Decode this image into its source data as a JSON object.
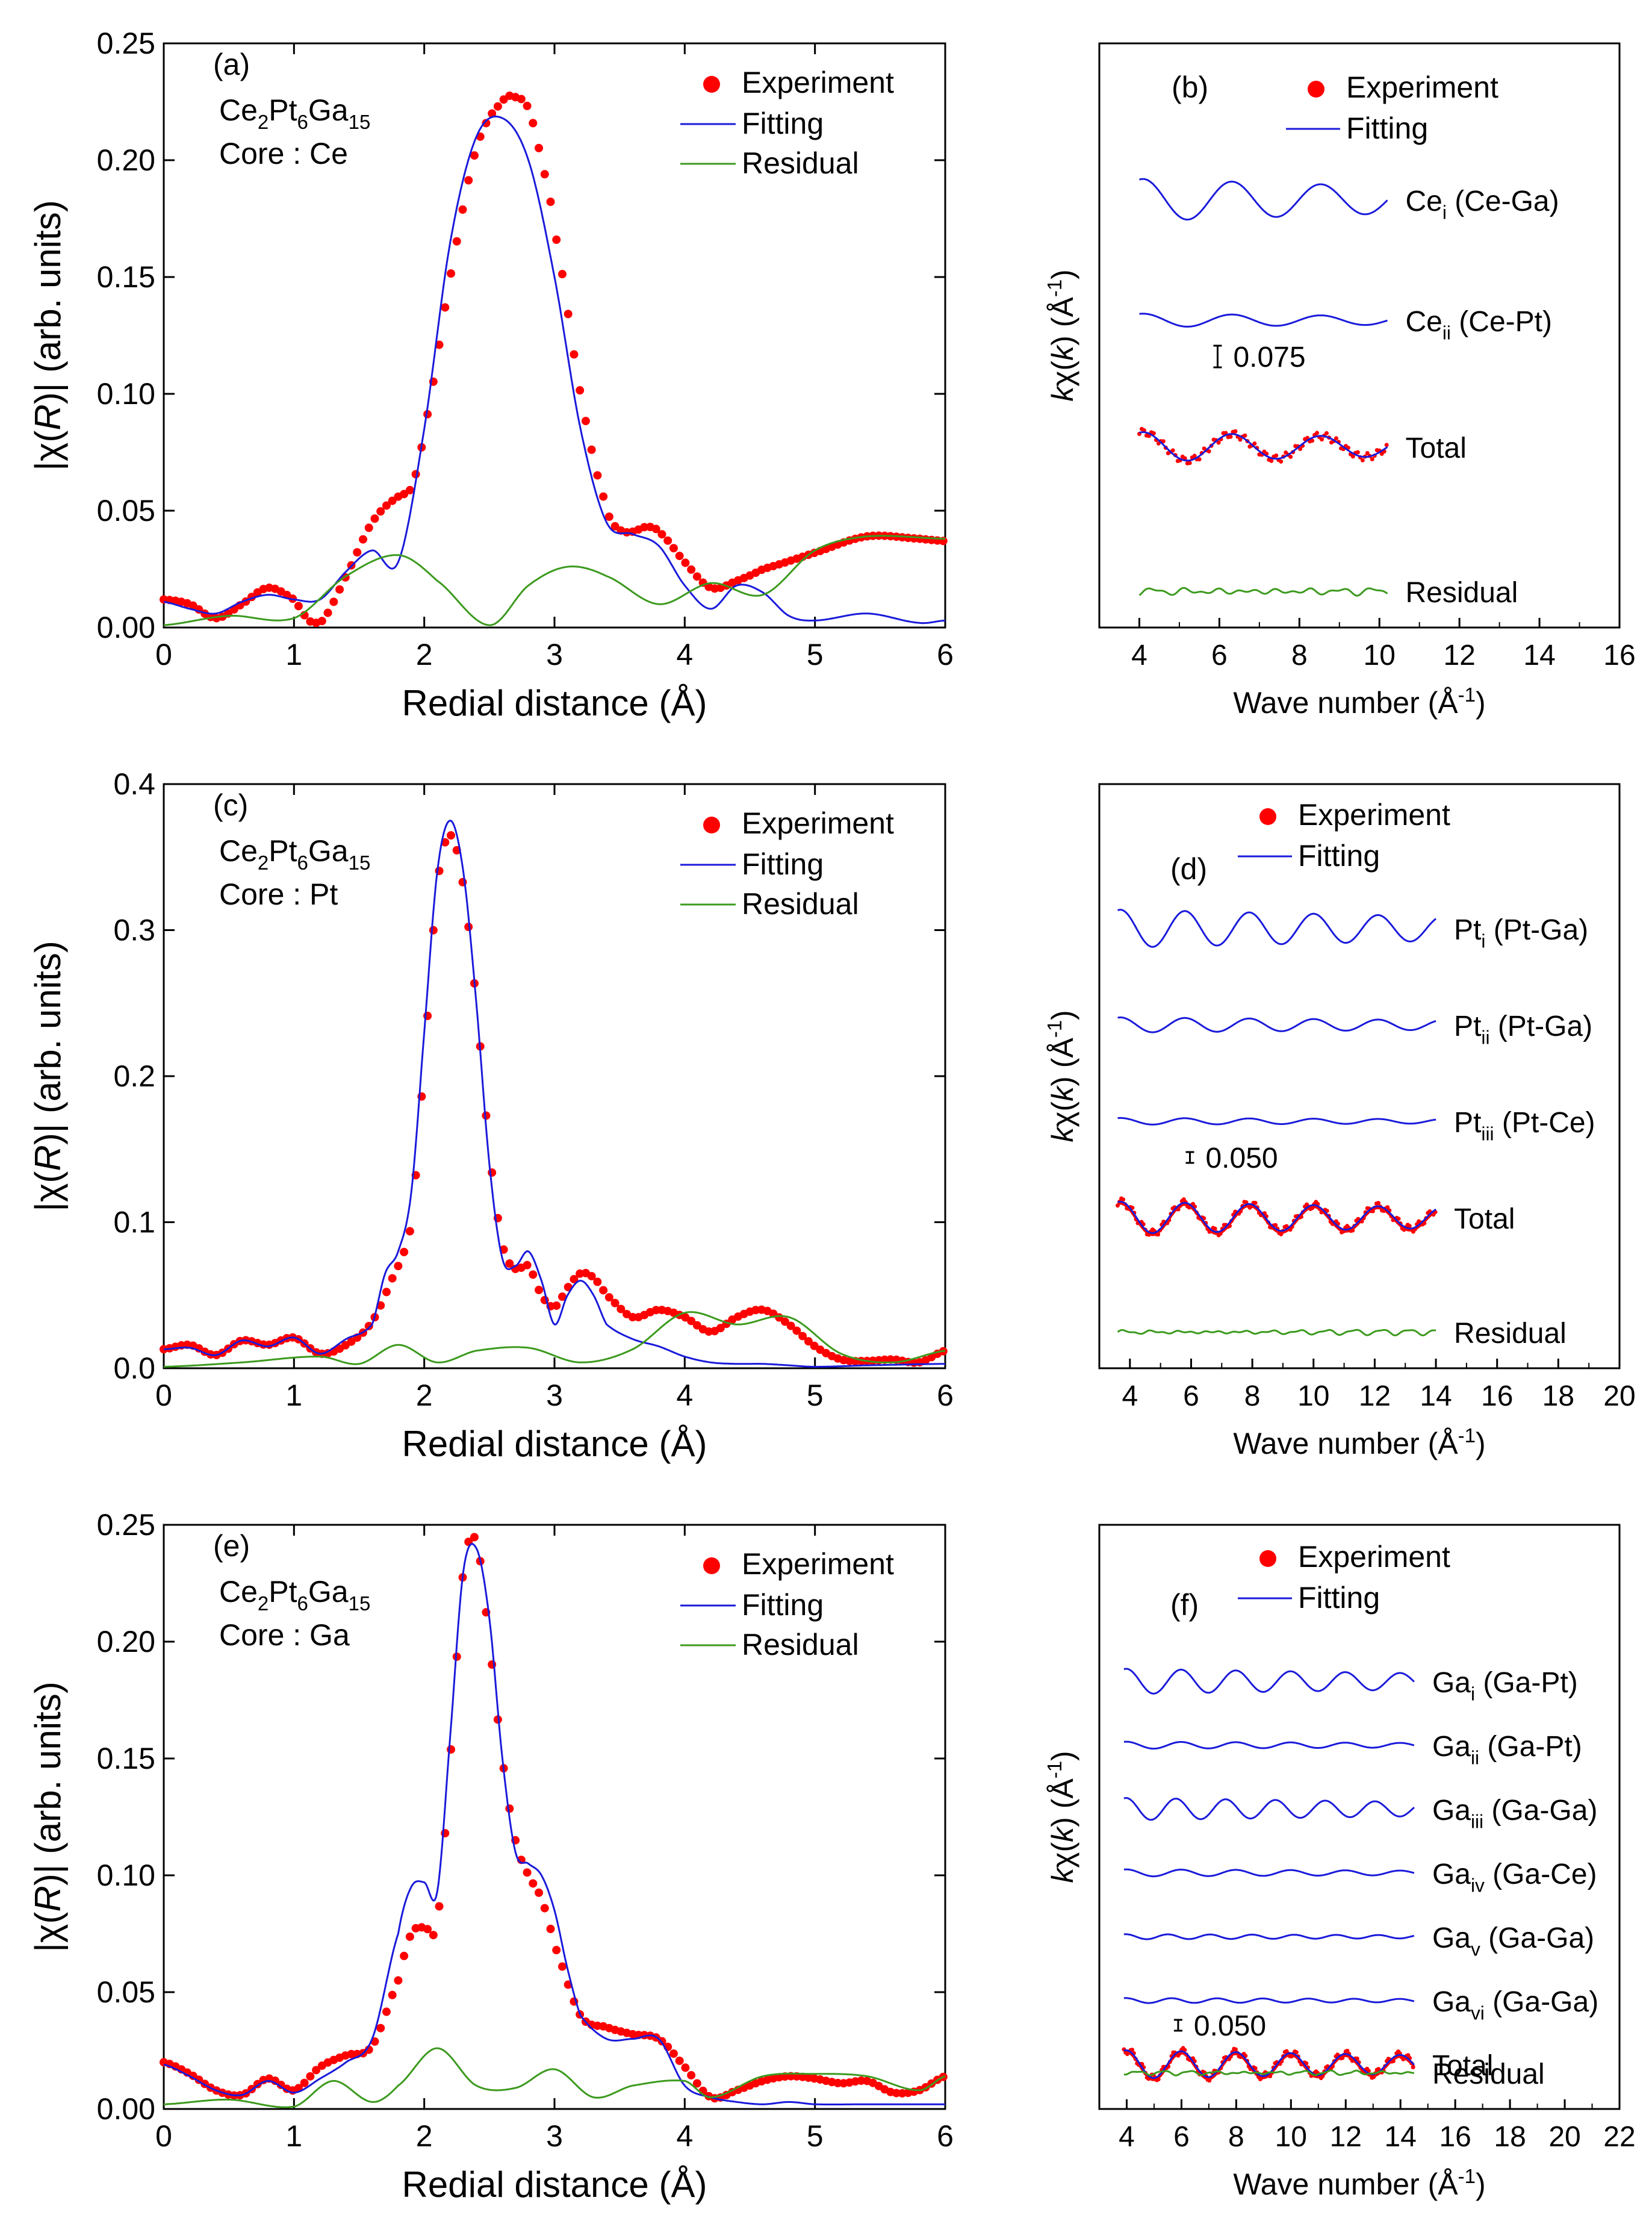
{
  "colors": {
    "experiment": "#ff0000",
    "fitting": "#1a1adb",
    "residual": "#3c9a1e",
    "axis": "#000000"
  },
  "chart_data": [
    {
      "id": "a",
      "type": "line",
      "label": "(a)",
      "title_lines": [
        [
          "Ce",
          "2",
          "Pt",
          "6",
          "Ga",
          "15"
        ],
        "Core : Ce"
      ],
      "xlabel": "Redial distance (Å)",
      "ylabel": "|χ(R)| (arb. units)",
      "xlim": [
        0,
        6
      ],
      "ylim": [
        0,
        0.25
      ],
      "xticks": [
        "0",
        "1",
        "2",
        "3",
        "4",
        "5",
        "6"
      ],
      "yticks": [
        "0.00",
        "0.05",
        "0.10",
        "0.15",
        "0.20",
        "0.25"
      ],
      "legend": [
        "Experiment",
        "Fitting",
        "Residual"
      ],
      "series": [
        {
          "name": "Experiment",
          "kind": "points",
          "x": [
            0,
            0.2,
            0.4,
            0.6,
            0.8,
            1.0,
            1.1,
            1.2,
            1.4,
            1.6,
            1.8,
            1.9,
            2.0,
            2.2,
            2.4,
            2.6,
            2.7,
            2.8,
            2.9,
            3.0,
            3.2,
            3.4,
            3.5,
            3.6,
            3.7,
            3.8,
            4.0,
            4.2,
            4.4,
            4.6,
            5.0,
            5.4,
            5.8,
            6.0
          ],
          "y": [
            0.012,
            0.01,
            0.004,
            0.01,
            0.017,
            0.012,
            0.004,
            0.002,
            0.022,
            0.045,
            0.056,
            0.06,
            0.085,
            0.15,
            0.205,
            0.225,
            0.227,
            0.222,
            0.2,
            0.17,
            0.1,
            0.052,
            0.042,
            0.041,
            0.043,
            0.041,
            0.028,
            0.017,
            0.02,
            0.025,
            0.032,
            0.039,
            0.038,
            0.037
          ]
        },
        {
          "name": "Fitting",
          "kind": "line",
          "x": [
            0,
            0.2,
            0.4,
            0.6,
            0.8,
            1.0,
            1.2,
            1.4,
            1.6,
            1.8,
            2.0,
            2.2,
            2.4,
            2.6,
            2.8,
            3.0,
            3.2,
            3.4,
            3.6,
            3.8,
            4.0,
            4.2,
            4.4,
            4.6,
            4.8,
            5.0,
            5.4,
            5.8,
            6.0
          ],
          "y": [
            0.011,
            0.008,
            0.006,
            0.011,
            0.014,
            0.012,
            0.012,
            0.024,
            0.033,
            0.028,
            0.085,
            0.165,
            0.21,
            0.218,
            0.2,
            0.15,
            0.085,
            0.045,
            0.04,
            0.035,
            0.018,
            0.008,
            0.018,
            0.015,
            0.005,
            0.003,
            0.006,
            0.002,
            0.003
          ]
        },
        {
          "name": "Residual",
          "kind": "line",
          "x": [
            0,
            0.5,
            1.0,
            1.4,
            1.8,
            2.1,
            2.5,
            2.8,
            3.1,
            3.4,
            3.8,
            4.2,
            4.6,
            5.0,
            5.4,
            6.0
          ],
          "y": [
            0.001,
            0.005,
            0.004,
            0.022,
            0.031,
            0.02,
            0.001,
            0.018,
            0.026,
            0.022,
            0.01,
            0.019,
            0.014,
            0.033,
            0.039,
            0.038
          ]
        }
      ]
    },
    {
      "id": "b",
      "type": "line",
      "label": "(b)",
      "xlabel": "Wave number (Å⁻¹)",
      "ylabel": "kχ(k) (Å⁻¹)",
      "xlim": [
        3,
        16
      ],
      "xticks": [
        "4",
        "6",
        "8",
        "10",
        "12",
        "14",
        "16"
      ],
      "legend": [
        "Experiment",
        "Fitting"
      ],
      "scale_bar": "0.075",
      "series": [
        {
          "name": "Ce",
          "sub": "i",
          "suffix": " (Ce-Ga)",
          "x_range": [
            4,
            10.2
          ],
          "amplitude": 0.5,
          "frequency": 0.9
        },
        {
          "name": "Ce",
          "sub": "ii",
          "suffix": " (Ce-Pt)",
          "x_range": [
            4,
            10.2
          ],
          "amplitude": 0.16,
          "frequency": 0.9
        },
        {
          "name": "Total",
          "x_range": [
            4,
            10.2
          ],
          "amplitude": 0.35,
          "frequency": 0.9,
          "with_points": true
        },
        {
          "name": "Residual",
          "x_range": [
            4,
            10.2
          ],
          "amplitude": 0.12,
          "frequency": 2.5,
          "noise": true
        }
      ]
    },
    {
      "id": "c",
      "type": "line",
      "label": "(c)",
      "title_lines": [
        [
          "Ce",
          "2",
          "Pt",
          "6",
          "Ga",
          "15"
        ],
        "Core : Pt"
      ],
      "xlabel": "Redial distance (Å)",
      "ylabel": "|χ(R)| (arb. units)",
      "xlim": [
        0,
        6
      ],
      "ylim": [
        0,
        0.4
      ],
      "xticks": [
        "0",
        "1",
        "2",
        "3",
        "4",
        "5",
        "6"
      ],
      "yticks": [
        "0.0",
        "0.1",
        "0.2",
        "0.3",
        "0.4"
      ],
      "legend": [
        "Experiment",
        "Fitting",
        "Residual"
      ],
      "series": [
        {
          "name": "Experiment",
          "kind": "points",
          "x": [
            0,
            0.2,
            0.4,
            0.6,
            0.8,
            1.0,
            1.2,
            1.4,
            1.6,
            1.8,
            1.9,
            2.0,
            2.1,
            2.2,
            2.3,
            2.4,
            2.5,
            2.6,
            2.7,
            2.8,
            2.9,
            3.0,
            3.1,
            3.2,
            3.3,
            3.4,
            3.6,
            3.8,
            4.0,
            4.2,
            4.4,
            4.6,
            4.8,
            5.0,
            5.2,
            5.4,
            5.6,
            5.8,
            6.0
          ],
          "y": [
            0.013,
            0.016,
            0.009,
            0.019,
            0.016,
            0.021,
            0.01,
            0.016,
            0.032,
            0.07,
            0.1,
            0.21,
            0.33,
            0.365,
            0.33,
            0.25,
            0.15,
            0.085,
            0.068,
            0.07,
            0.05,
            0.042,
            0.055,
            0.065,
            0.062,
            0.05,
            0.035,
            0.04,
            0.035,
            0.025,
            0.035,
            0.04,
            0.03,
            0.015,
            0.006,
            0.005,
            0.006,
            0.004,
            0.012
          ]
        },
        {
          "name": "Fitting",
          "kind": "line",
          "x": [
            0,
            0.2,
            0.4,
            0.6,
            0.8,
            1.0,
            1.2,
            1.4,
            1.6,
            1.7,
            1.8,
            1.9,
            2.0,
            2.1,
            2.2,
            2.3,
            2.4,
            2.5,
            2.6,
            2.7,
            2.8,
            2.9,
            3.0,
            3.1,
            3.2,
            3.3,
            3.4,
            3.6,
            3.8,
            4.0,
            4.2,
            4.4,
            4.6,
            4.8,
            5.0,
            5.4,
            6.0
          ],
          "y": [
            0.013,
            0.014,
            0.009,
            0.019,
            0.015,
            0.021,
            0.01,
            0.02,
            0.03,
            0.065,
            0.08,
            0.12,
            0.23,
            0.34,
            0.375,
            0.34,
            0.25,
            0.14,
            0.075,
            0.07,
            0.08,
            0.06,
            0.03,
            0.05,
            0.06,
            0.05,
            0.03,
            0.02,
            0.015,
            0.008,
            0.004,
            0.003,
            0.003,
            0.002,
            0.001,
            0.002,
            0.003
          ]
        },
        {
          "name": "Residual",
          "kind": "line",
          "x": [
            0,
            0.6,
            1.2,
            1.5,
            1.8,
            2.1,
            2.4,
            2.8,
            3.2,
            3.6,
            4.0,
            4.4,
            4.8,
            5.2,
            5.6,
            6.0
          ],
          "y": [
            0.001,
            0.004,
            0.008,
            0.003,
            0.016,
            0.004,
            0.012,
            0.014,
            0.004,
            0.013,
            0.038,
            0.03,
            0.035,
            0.01,
            0.004,
            0.012
          ]
        }
      ]
    },
    {
      "id": "d",
      "type": "line",
      "label": "(d)",
      "xlabel": "Wave number (Å⁻¹)",
      "ylabel": "kχ(k) (Å⁻¹)",
      "xlim": [
        3,
        20
      ],
      "xticks": [
        "4",
        "6",
        "8",
        "10",
        "12",
        "14",
        "16",
        "18",
        "20"
      ],
      "legend": [
        "Experiment",
        "Fitting"
      ],
      "scale_bar": "0.050",
      "series": [
        {
          "name": "Pt",
          "sub": "i",
          "suffix": " (Pt-Ga)",
          "x_range": [
            3.6,
            14
          ],
          "amplitude": 0.45,
          "frequency": 0.95
        },
        {
          "name": "Pt",
          "sub": "ii",
          "suffix": " (Pt-Ga)",
          "x_range": [
            3.6,
            14
          ],
          "amplitude": 0.18,
          "frequency": 0.95
        },
        {
          "name": "Pt",
          "sub": "iii",
          "suffix": " (Pt-Ce)",
          "x_range": [
            3.6,
            14
          ],
          "amplitude": 0.08,
          "frequency": 0.95
        },
        {
          "name": "Total",
          "x_range": [
            3.6,
            14
          ],
          "amplitude": 0.38,
          "frequency": 0.95,
          "with_points": true
        },
        {
          "name": "Residual",
          "x_range": [
            3.6,
            14
          ],
          "amplitude": 0.06,
          "frequency": 2.2,
          "noise": true
        }
      ]
    },
    {
      "id": "e",
      "type": "line",
      "label": "(e)",
      "title_lines": [
        [
          "Ce",
          "2",
          "Pt",
          "6",
          "Ga",
          "15"
        ],
        "Core : Ga"
      ],
      "xlabel": "Redial distance (Å)",
      "ylabel": "|χ(R)| (arb. units)",
      "xlim": [
        0,
        6
      ],
      "ylim": [
        0,
        0.25
      ],
      "xticks": [
        "0",
        "1",
        "2",
        "3",
        "4",
        "5",
        "6"
      ],
      "yticks": [
        "0.00",
        "0.05",
        "0.10",
        "0.15",
        "0.20",
        "0.25"
      ],
      "legend": [
        "Experiment",
        "Fitting",
        "Residual"
      ],
      "series": [
        {
          "name": "Experiment",
          "kind": "points",
          "x": [
            0,
            0.2,
            0.4,
            0.6,
            0.8,
            1.0,
            1.2,
            1.4,
            1.6,
            1.8,
            1.9,
            2.0,
            2.1,
            2.2,
            2.3,
            2.4,
            2.5,
            2.6,
            2.7,
            2.8,
            2.9,
            3.0,
            3.2,
            3.4,
            3.6,
            3.8,
            4.0,
            4.2,
            4.4,
            4.6,
            4.8,
            5.0,
            5.2,
            5.4,
            5.6,
            5.8,
            6.0
          ],
          "y": [
            0.02,
            0.015,
            0.008,
            0.006,
            0.013,
            0.008,
            0.018,
            0.023,
            0.027,
            0.055,
            0.075,
            0.078,
            0.08,
            0.15,
            0.23,
            0.243,
            0.2,
            0.15,
            0.115,
            0.1,
            0.09,
            0.07,
            0.04,
            0.035,
            0.032,
            0.03,
            0.018,
            0.005,
            0.008,
            0.012,
            0.014,
            0.013,
            0.011,
            0.012,
            0.007,
            0.008,
            0.014
          ]
        },
        {
          "name": "Fitting",
          "kind": "line",
          "x": [
            0,
            0.2,
            0.4,
            0.6,
            0.8,
            1.0,
            1.2,
            1.4,
            1.6,
            1.8,
            1.9,
            2.0,
            2.1,
            2.2,
            2.3,
            2.4,
            2.5,
            2.6,
            2.7,
            2.8,
            2.9,
            3.0,
            3.1,
            3.2,
            3.4,
            3.6,
            3.8,
            4.0,
            4.2,
            4.4,
            4.6,
            4.8,
            5.0,
            5.4,
            5.8,
            6.0
          ],
          "y": [
            0.019,
            0.014,
            0.008,
            0.006,
            0.012,
            0.007,
            0.013,
            0.02,
            0.03,
            0.075,
            0.095,
            0.097,
            0.093,
            0.16,
            0.23,
            0.24,
            0.21,
            0.15,
            0.11,
            0.105,
            0.1,
            0.085,
            0.06,
            0.04,
            0.03,
            0.03,
            0.03,
            0.01,
            0.005,
            0.003,
            0.002,
            0.003,
            0.002,
            0.002,
            0.002,
            0.002
          ]
        },
        {
          "name": "Residual",
          "kind": "line",
          "x": [
            0,
            0.5,
            1.0,
            1.3,
            1.6,
            1.8,
            2.1,
            2.4,
            2.7,
            3.0,
            3.3,
            3.6,
            4.0,
            4.2,
            4.6,
            5.0,
            5.4,
            5.8,
            6.0
          ],
          "y": [
            0.002,
            0.004,
            0.001,
            0.012,
            0.003,
            0.01,
            0.026,
            0.01,
            0.009,
            0.017,
            0.005,
            0.01,
            0.012,
            0.005,
            0.014,
            0.015,
            0.014,
            0.008,
            0.014
          ]
        }
      ]
    },
    {
      "id": "f",
      "type": "line",
      "label": "(f)",
      "xlabel": "Wave number (Å⁻¹)",
      "ylabel": "kχ(k) (Å⁻¹)",
      "xlim": [
        3,
        22
      ],
      "xticks": [
        "4",
        "6",
        "8",
        "10",
        "12",
        "14",
        "16",
        "18",
        "20",
        "22"
      ],
      "legend": [
        "Experiment",
        "Fitting"
      ],
      "scale_bar": "0.050",
      "series": [
        {
          "name": "Ga",
          "sub": "i",
          "suffix": " (Ga-Pt)",
          "x_range": [
            3.9,
            14.5
          ],
          "amplitude": 0.25,
          "frequency": 1.0
        },
        {
          "name": "Ga",
          "sub": "ii",
          "suffix": " (Ga-Pt)",
          "x_range": [
            3.9,
            14.5
          ],
          "amplitude": 0.07,
          "frequency": 1.0
        },
        {
          "name": "Ga",
          "sub": "iii",
          "suffix": " (Ga-Ga)",
          "x_range": [
            3.9,
            14.5
          ],
          "amplitude": 0.22,
          "frequency": 1.1
        },
        {
          "name": "Ga",
          "sub": "iv",
          "suffix": " (Ga-Ce)",
          "x_range": [
            3.9,
            14.5
          ],
          "amplitude": 0.07,
          "frequency": 1.0
        },
        {
          "name": "Ga",
          "sub": "v",
          "suffix": " (Ga-Ga)",
          "x_range": [
            3.9,
            14.5
          ],
          "amplitude": 0.05,
          "frequency": 1.3
        },
        {
          "name": "Ga",
          "sub": "vi",
          "suffix": " (Ga-Ga)",
          "x_range": [
            3.9,
            14.5
          ],
          "amplitude": 0.05,
          "frequency": 1.2
        },
        {
          "name": "Total",
          "x_range": [
            3.9,
            14.5
          ],
          "amplitude": 0.28,
          "frequency": 1.0,
          "with_points": true
        },
        {
          "name": "Residual",
          "x_range": [
            3.9,
            14.5
          ],
          "amplitude": 0.04,
          "frequency": 2.0,
          "noise": true
        }
      ]
    }
  ]
}
